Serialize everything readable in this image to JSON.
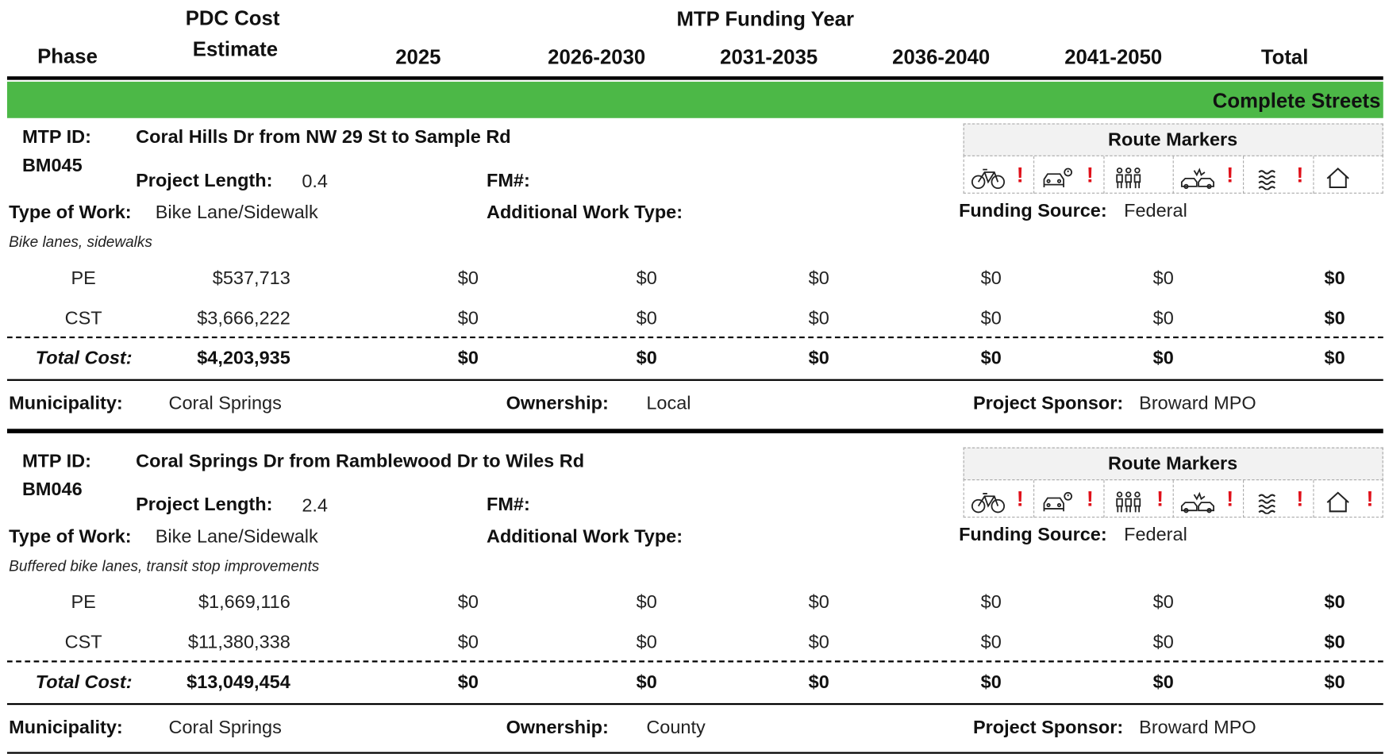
{
  "header": {
    "phase": "Phase",
    "pdc_line1": "PDC Cost",
    "pdc_line2": "Estimate",
    "mtp": "MTP Funding Year",
    "years": [
      "2025",
      "2026-2030",
      "2031-2035",
      "2036-2040",
      "2041-2050"
    ],
    "total": "Total"
  },
  "section": "Complete Streets",
  "labels": {
    "mtp_id": "MTP ID:",
    "length": "Project Length:",
    "fm": "FM#:",
    "type": "Type of Work:",
    "additional": "Additional Work Type:",
    "route_markers": "Route Markers",
    "funding": "Funding Source:",
    "total_cost": "Total Cost:",
    "municipality": "Municipality:",
    "ownership": "Ownership:",
    "sponsor": "Project Sponsor:"
  },
  "projects": [
    {
      "mtp_id": "BM045",
      "title": "Coral Hills Dr from NW 29 St to Sample Rd",
      "length": "0.4",
      "type": "Bike Lane/Sidewalk",
      "description": "Bike lanes, sidewalks",
      "funding": "Federal",
      "markers": [
        {
          "alert": "!"
        },
        {
          "alert": "!"
        },
        {},
        {
          "alert": "!"
        },
        {
          "alert": "!"
        },
        {}
      ],
      "rows": [
        {
          "phase": "PE",
          "estimate": "$537,713",
          "years": [
            "$0",
            "$0",
            "$0",
            "$0",
            "$0"
          ],
          "total": "$0"
        },
        {
          "phase": "CST",
          "estimate": "$3,666,222",
          "years": [
            "$0",
            "$0",
            "$0",
            "$0",
            "$0"
          ],
          "total": "$0"
        }
      ],
      "total_estimate": "$4,203,935",
      "total_years": [
        "$0",
        "$0",
        "$0",
        "$0",
        "$0"
      ],
      "total": "$0",
      "municipality": "Coral Springs",
      "ownership": "Local",
      "sponsor": "Broward MPO"
    },
    {
      "mtp_id": "BM046",
      "title": "Coral Springs Dr from Ramblewood Dr to Wiles Rd",
      "length": "2.4",
      "type": "Bike Lane/Sidewalk",
      "description": "Buffered bike lanes, transit stop improvements",
      "funding": "Federal",
      "markers": [
        {
          "alert": "!"
        },
        {
          "alert": "!"
        },
        {
          "alert": "!"
        },
        {
          "alert": "!"
        },
        {
          "alert": "!"
        },
        {
          "alert": "!"
        }
      ],
      "rows": [
        {
          "phase": "PE",
          "estimate": "$1,669,116",
          "years": [
            "$0",
            "$0",
            "$0",
            "$0",
            "$0"
          ],
          "total": "$0"
        },
        {
          "phase": "CST",
          "estimate": "$11,380,338",
          "years": [
            "$0",
            "$0",
            "$0",
            "$0",
            "$0"
          ],
          "total": "$0"
        }
      ],
      "total_estimate": "$13,049,454",
      "total_years": [
        "$0",
        "$0",
        "$0",
        "$0",
        "$0"
      ],
      "total": "$0",
      "municipality": "Coral Springs",
      "ownership": "County",
      "sponsor": "Broward MPO"
    }
  ]
}
